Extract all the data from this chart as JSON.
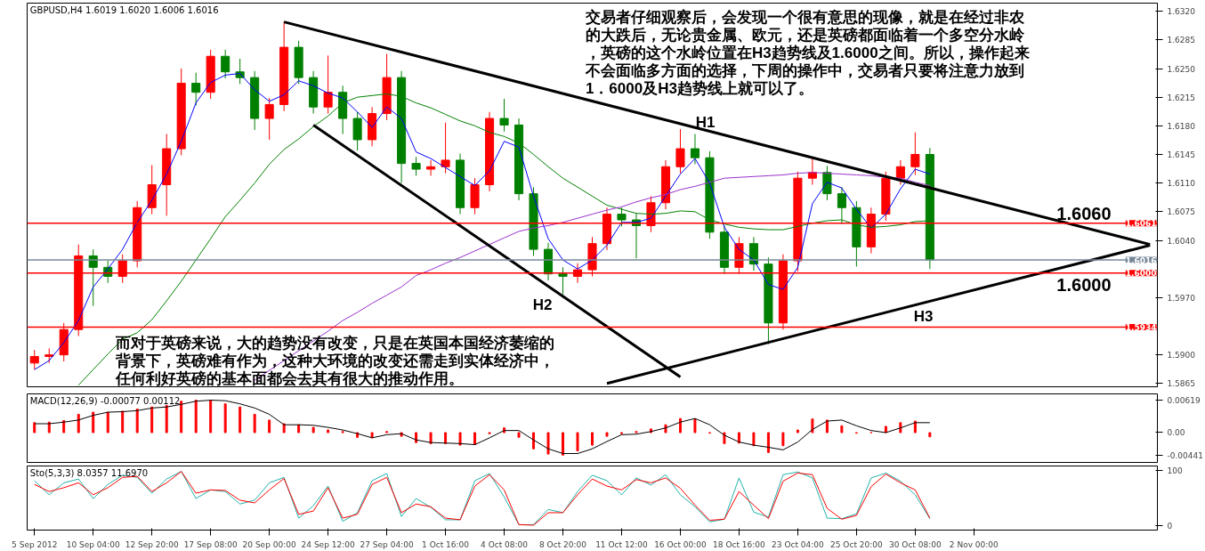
{
  "chart_data": [
    {
      "type": "candlestick",
      "title": "GBPUSD,H4  1.6019 1.6020 1.6006 1.6016",
      "categories": [
        null,
        null,
        null,
        null,
        null,
        null,
        null,
        null,
        null,
        null,
        null,
        null,
        null,
        null,
        null,
        null,
        null,
        null,
        null,
        null,
        null,
        null,
        null,
        null,
        null,
        null,
        null,
        null,
        null,
        null,
        null,
        null,
        null,
        null,
        null,
        null,
        null,
        null,
        null,
        null,
        null,
        null,
        null,
        null,
        null,
        null,
        null,
        null,
        null,
        null,
        null,
        null,
        null,
        null,
        null,
        null,
        null,
        null,
        null,
        null,
        null,
        null,
        null,
        null,
        null,
        null,
        null,
        null,
        null,
        null,
        null,
        null,
        null,
        null,
        null,
        null,
        null
      ],
      "ohlc": [
        [
          1.589,
          1.5906,
          1.5882,
          1.5898
        ],
        [
          1.5898,
          1.5908,
          1.589,
          1.59
        ],
        [
          1.59,
          1.5939,
          1.5892,
          1.5931
        ],
        [
          1.5931,
          1.6035,
          1.5923,
          1.6021
        ],
        [
          1.6021,
          1.6029,
          1.596,
          1.6007
        ],
        [
          1.6007,
          1.6015,
          1.5988,
          1.5996
        ],
        [
          1.5996,
          1.6023,
          1.5988,
          1.6015
        ],
        [
          1.6015,
          1.6088,
          1.6007,
          1.608
        ],
        [
          1.608,
          1.6132,
          1.6072,
          1.6108
        ],
        [
          1.6108,
          1.617,
          1.607,
          1.6152
        ],
        [
          1.6152,
          1.625,
          1.6144,
          1.6232
        ],
        [
          1.6232,
          1.6245,
          1.6205,
          1.6221
        ],
        [
          1.6221,
          1.6273,
          1.6213,
          1.6265
        ],
        [
          1.6265,
          1.6273,
          1.6238,
          1.6246
        ],
        [
          1.6246,
          1.6262,
          1.6231,
          1.6239
        ],
        [
          1.6239,
          1.6247,
          1.6175,
          1.6189
        ],
        [
          1.6189,
          1.6214,
          1.6163,
          1.6206
        ],
        [
          1.6206,
          1.6307,
          1.6198,
          1.6276
        ],
        [
          1.6276,
          1.6284,
          1.6231,
          1.6239
        ],
        [
          1.6239,
          1.6247,
          1.6195,
          1.6203
        ],
        [
          1.6203,
          1.6266,
          1.6195,
          1.6221
        ],
        [
          1.6221,
          1.6229,
          1.617,
          1.6189
        ],
        [
          1.6189,
          1.6197,
          1.615,
          1.6163
        ],
        [
          1.6163,
          1.6203,
          1.6155,
          1.6195
        ],
        [
          1.6195,
          1.6268,
          1.6187,
          1.6239
        ],
        [
          1.6239,
          1.6247,
          1.611,
          1.6134
        ],
        [
          1.6134,
          1.6142,
          1.6119,
          1.6127
        ],
        [
          1.6127,
          1.6138,
          1.6119,
          1.613
        ],
        [
          1.613,
          1.6184,
          1.6122,
          1.6138
        ],
        [
          1.6138,
          1.6146,
          1.6072,
          1.608
        ],
        [
          1.608,
          1.6116,
          1.6072,
          1.6108
        ],
        [
          1.6108,
          1.6197,
          1.61,
          1.6189
        ],
        [
          1.6189,
          1.6213,
          1.6173,
          1.6181
        ],
        [
          1.6181,
          1.6189,
          1.6089,
          1.6097
        ],
        [
          1.6097,
          1.6105,
          1.6021,
          1.6029
        ],
        [
          1.6029,
          1.6037,
          1.5991,
          1.5999
        ],
        [
          1.5999,
          1.6007,
          1.5974,
          1.5996
        ],
        [
          1.5996,
          1.6012,
          1.5988,
          1.6004
        ],
        [
          1.6004,
          1.6044,
          1.5996,
          1.6036
        ],
        [
          1.6036,
          1.608,
          1.6028,
          1.6072
        ],
        [
          1.6072,
          1.608,
          1.6057,
          1.6065
        ],
        [
          1.6065,
          1.6073,
          1.6018,
          1.6058
        ],
        [
          1.6058,
          1.6094,
          1.605,
          1.6086
        ],
        [
          1.6086,
          1.6138,
          1.6078,
          1.613
        ],
        [
          1.613,
          1.6176,
          1.6122,
          1.6152
        ],
        [
          1.6152,
          1.617,
          1.6133,
          1.6141
        ],
        [
          1.6141,
          1.6149,
          1.6042,
          1.605
        ],
        [
          1.605,
          1.6058,
          1.5999,
          1.6007
        ],
        [
          1.6007,
          1.6044,
          1.5999,
          1.6036
        ],
        [
          1.6036,
          1.6044,
          1.6003,
          1.6011
        ],
        [
          1.6011,
          1.6019,
          1.5913,
          1.5939
        ],
        [
          1.5939,
          1.6023,
          1.5931,
          1.6015
        ],
        [
          1.6015,
          1.6124,
          1.6002,
          1.6116
        ],
        [
          1.6116,
          1.614,
          1.6108,
          1.6123
        ],
        [
          1.6123,
          1.6131,
          1.6089,
          1.6097
        ],
        [
          1.6097,
          1.6105,
          1.606,
          1.608
        ],
        [
          1.608,
          1.6088,
          1.6008,
          1.6032
        ],
        [
          1.6032,
          1.608,
          1.6024,
          1.6072
        ],
        [
          1.6072,
          1.6124,
          1.6064,
          1.6116
        ],
        [
          1.6116,
          1.6138,
          1.6108,
          1.613
        ],
        [
          1.613,
          1.6172,
          1.612,
          1.6145
        ],
        [
          1.6145,
          1.6153,
          1.6005,
          1.6016
        ],
        null,
        null,
        null,
        null,
        null,
        null,
        null,
        null,
        null,
        null,
        null,
        null,
        null,
        null,
        null
      ],
      "colors": [
        "#ff0000",
        "#ff0000",
        "#ff0000",
        "#ff0000",
        "#008000",
        "#008000",
        "#ff0000",
        "#ff0000",
        "#ff0000",
        "#ff0000",
        "#ff0000",
        "#008000",
        "#ff0000",
        "#008000",
        "#008000",
        "#008000",
        "#ff0000",
        "#ff0000",
        "#008000",
        "#008000",
        "#ff0000",
        "#008000",
        "#008000",
        "#ff0000",
        "#ff0000",
        "#008000",
        "#008000",
        "#ff0000",
        "#ff0000",
        "#008000",
        "#ff0000",
        "#ff0000",
        "#008000",
        "#008000",
        "#008000",
        "#008000",
        "#008000",
        "#ff0000",
        "#ff0000",
        "#ff0000",
        "#008000",
        "#008000",
        "#ff0000",
        "#ff0000",
        "#ff0000",
        "#008000",
        "#008000",
        "#008000",
        "#ff0000",
        "#008000",
        "#008000",
        "#ff0000",
        "#ff0000",
        "#ff0000",
        "#008000",
        "#008000",
        "#008000",
        "#ff0000",
        "#ff0000",
        "#ff0000",
        "#ff0000",
        "#008000",
        null,
        null,
        null,
        null,
        null,
        null,
        null,
        null,
        null,
        null,
        null,
        null,
        null,
        null,
        null
      ],
      "series": [
        {
          "type": "line",
          "color": "#0000ff",
          "values": [
            1.5882,
            1.5893,
            1.5915,
            1.5942,
            1.5983,
            1.6005,
            1.6029,
            1.6062,
            1.6089,
            1.6121,
            1.6161,
            1.6208,
            1.6233,
            1.6242,
            1.6244,
            1.6224,
            1.621,
            1.6218,
            1.6235,
            1.6229,
            1.622,
            1.6214,
            1.6197,
            1.6178,
            1.6203,
            1.6189,
            1.6148,
            1.614,
            1.6129,
            1.6118,
            1.6107,
            1.6125,
            1.6161,
            1.6154,
            1.6094,
            1.6042,
            1.6016,
            1.6005,
            1.6016,
            1.6034,
            1.6062,
            1.6062,
            1.6067,
            1.6094,
            1.6121,
            1.614,
            1.611,
            1.6056,
            1.6029,
            1.6016,
            1.5986,
            1.598,
            1.6007,
            1.6085,
            1.6111,
            1.6104,
            1.6078,
            1.6055,
            1.6072,
            1.6103,
            1.6127,
            1.6121,
            null,
            null,
            null,
            null,
            null,
            null,
            null,
            null,
            null,
            null,
            null,
            null,
            null,
            null,
            null
          ]
        },
        {
          "type": "line",
          "color": "#008000",
          "values": [
            null,
            null,
            null,
            1.5863,
            1.5882,
            1.5901,
            1.5919,
            1.5927,
            1.5943,
            1.5966,
            1.599,
            1.6016,
            1.6042,
            1.6069,
            1.6089,
            1.611,
            1.6133,
            1.6151,
            1.6164,
            1.6179,
            1.6192,
            1.6208,
            1.6215,
            1.6217,
            1.6219,
            1.6216,
            1.6208,
            1.6202,
            1.6194,
            1.6186,
            1.618,
            1.6172,
            1.6167,
            1.6159,
            1.6145,
            1.613,
            1.6116,
            1.6105,
            1.6094,
            1.6083,
            1.6078,
            1.6073,
            1.6072,
            1.6073,
            1.6076,
            1.6075,
            1.6065,
            1.606,
            1.6056,
            1.6054,
            1.6053,
            1.6053,
            1.6057,
            1.6061,
            1.6064,
            1.6065,
            1.6059,
            1.6056,
            1.6057,
            1.6059,
            1.6063,
            1.6064,
            null,
            null,
            null,
            null,
            null,
            null,
            null,
            null,
            null,
            null,
            null,
            null,
            null,
            null,
            null
          ]
        },
        {
          "type": "line",
          "color": "#9932cc",
          "values": [
            null,
            null,
            null,
            null,
            null,
            null,
            null,
            null,
            null,
            null,
            null,
            null,
            null,
            null,
            null,
            1.5869,
            1.5881,
            1.5893,
            1.5905,
            1.5917,
            1.5929,
            1.5942,
            1.5952,
            1.5963,
            1.5973,
            1.5983,
            1.5997,
            1.6004,
            1.6012,
            1.6019,
            1.6027,
            1.6035,
            1.6043,
            1.6051,
            1.6055,
            1.6058,
            1.6062,
            1.6067,
            1.6072,
            1.6077,
            1.6081,
            1.6087,
            1.6092,
            1.6096,
            1.6102,
            1.6106,
            1.6111,
            1.6116,
            1.6117,
            1.6118,
            1.6119,
            1.612,
            1.6122,
            1.6123,
            1.6122,
            1.6121,
            1.612,
            1.6119,
            1.6117,
            1.6116,
            1.6111,
            1.6107,
            null,
            null,
            null,
            null,
            null,
            null,
            null,
            null,
            null,
            null,
            null,
            null,
            null,
            null,
            null
          ]
        },
        {
          "type": "line",
          "color": "#000000",
          "values": [
            null,
            null,
            null,
            null,
            null,
            null,
            null,
            null,
            null,
            null,
            null,
            null,
            null,
            null,
            null,
            null,
            null,
            1.6307,
            null,
            null,
            null,
            null,
            null,
            null,
            null,
            null,
            null,
            null,
            null,
            null,
            null,
            null,
            null,
            null,
            null,
            null,
            null,
            null,
            null,
            null,
            null,
            null,
            null,
            null,
            null,
            null,
            null,
            null,
            null,
            null,
            null,
            null,
            null,
            null,
            null,
            null,
            null,
            null,
            null,
            null,
            null,
            null,
            null,
            null,
            null,
            null,
            null,
            null,
            null,
            null,
            null,
            null,
            null,
            null,
            null,
            null,
            1.6035
          ]
        },
        {
          "type": "line",
          "color": "#000000",
          "values": [
            null,
            null,
            null,
            null,
            null,
            null,
            null,
            null,
            null,
            null,
            null,
            null,
            null,
            null,
            null,
            null,
            null,
            null,
            null,
            1.6181,
            null,
            null,
            null,
            null,
            null,
            null,
            null,
            null,
            null,
            null,
            null,
            null,
            null,
            null,
            null,
            null,
            null,
            null,
            null,
            null,
            null,
            null,
            null,
            null,
            1.5873,
            null,
            null,
            null,
            null,
            null,
            null,
            null,
            null,
            null,
            null,
            null,
            null,
            null,
            null,
            null,
            null,
            null,
            null,
            null,
            null,
            null,
            null,
            null,
            null,
            null,
            null,
            null,
            null,
            null,
            null,
            null,
            null
          ]
        },
        {
          "type": "line",
          "color": "#000000",
          "values": [
            null,
            null,
            null,
            null,
            null,
            null,
            null,
            null,
            null,
            null,
            null,
            null,
            null,
            null,
            null,
            null,
            null,
            null,
            null,
            null,
            null,
            null,
            null,
            null,
            null,
            null,
            null,
            null,
            null,
            null,
            null,
            null,
            null,
            null,
            null,
            null,
            null,
            null,
            null,
            1.5865,
            null,
            null,
            null,
            null,
            null,
            null,
            null,
            null,
            null,
            null,
            null,
            null,
            null,
            null,
            null,
            null,
            null,
            null,
            null,
            null,
            null,
            null,
            null,
            null,
            null,
            null,
            null,
            null,
            null,
            null,
            null,
            null,
            null,
            null,
            null,
            null,
            1.6034
          ]
        }
      ],
      "ylim": [
        1.5861,
        1.633
      ],
      "yticks": [
        {
          "value": 1.5865,
          "label": "1.5865"
        },
        {
          "value": 1.59,
          "label": "1.5900"
        },
        {
          "value": 1.597,
          "label": "1.5970"
        },
        {
          "value": 1.604,
          "label": "1.6040"
        },
        {
          "value": 1.6075,
          "label": "1.6075"
        },
        {
          "value": 1.611,
          "label": "1.6110"
        },
        {
          "value": 1.6145,
          "label": "1.6145"
        },
        {
          "value": 1.618,
          "label": "1.6180"
        },
        {
          "value": 1.6215,
          "label": "1.6215"
        },
        {
          "value": 1.625,
          "label": "1.6250"
        },
        {
          "value": 1.6285,
          "label": "1.6285"
        },
        {
          "value": 1.632,
          "label": "1.6320"
        }
      ],
      "ref_lines": [
        {
          "axis": "y",
          "value": 1.6061,
          "label": "1.6061",
          "color": "#ff0000"
        },
        {
          "axis": "y",
          "value": 1.6016,
          "label": "1.6016",
          "color": "#778899"
        },
        {
          "axis": "y",
          "value": 1.6,
          "label": "1.6000",
          "color": "#ff0000"
        },
        {
          "axis": "y",
          "value": 1.5934,
          "label": "1.5934",
          "color": "#ff0000"
        }
      ],
      "annotations": [
        "交易者仔细观察后，会发现一个很有意思的现像，就是在经过非农的大跌后，无论贵金属、欧元，还是英磅都面临着一个多空分水岭，英磅的这个水岭位置在H3趋势线及1.6000之间。所以，操作起来不会面临多方面的选择，下周的操作中，交易者只要将注意力放到1．6000及H3趋势线上就可以了。",
        "而对于英磅来说，大的趋势没有改变，只是在英国本国经济萎缩的背景下，英磅难有作为，这种大环境的改变还需走到实体经济中，任何利好英磅的基本面都会去其有很大的推动作用。",
        "H1",
        "H2",
        "H3",
        "1.6060",
        "1.6000"
      ],
      "grid": false,
      "tick_labels": "y"
    },
    {
      "type": "bar",
      "title": "MACD(12,26,9) -0.00077 0.00112",
      "categories": [
        null,
        null,
        null,
        null,
        null,
        null,
        null,
        null,
        null,
        null,
        null,
        null,
        null,
        null,
        null,
        null,
        null,
        null,
        null,
        null,
        null,
        null,
        null,
        null,
        null,
        null,
        null,
        null,
        null,
        null,
        null,
        null,
        null,
        null,
        null,
        null,
        null,
        null,
        null,
        null,
        null,
        null,
        null,
        null,
        null,
        null,
        null,
        null,
        null,
        null,
        null,
        null,
        null,
        null,
        null,
        null,
        null,
        null,
        null,
        null,
        null,
        null,
        null,
        null,
        null,
        null,
        null,
        null,
        null,
        null,
        null,
        null,
        null,
        null,
        null,
        null,
        null
      ],
      "series": [
        {
          "type": "bar",
          "color": "#ff0000",
          "values": [
            0.0019,
            0.002,
            0.0023,
            0.0035,
            0.0039,
            0.0039,
            0.0041,
            0.0045,
            0.0049,
            0.0052,
            0.006,
            0.0062,
            0.0062,
            0.0055,
            0.0049,
            0.0035,
            0.0024,
            0.0017,
            0.0015,
            0.001,
            0.0005,
            0.0002,
            -0.0009,
            -0.001,
            0.0002,
            -0.0007,
            -0.0019,
            -0.0021,
            -0.0021,
            -0.0024,
            -0.0023,
            -0.0002,
            0.0009,
            -0.0009,
            -0.0031,
            -0.0041,
            -0.0043,
            -0.0035,
            -0.0024,
            -0.0007,
            -0.0002,
            0.0002,
            0.0007,
            0.0015,
            0.0027,
            0.0026,
            -0.0001,
            -0.0021,
            -0.002,
            -0.0025,
            -0.0038,
            -0.0025,
            0.0005,
            0.0026,
            0.0024,
            0.0013,
            -0.0001,
            0.0,
            0.0012,
            0.0019,
            0.0022,
            -0.0008,
            null,
            null,
            null,
            null,
            null,
            null,
            null,
            null,
            null,
            null,
            null,
            null,
            null,
            null,
            null
          ]
        },
        {
          "type": "line",
          "color": "#000000",
          "values": [
            0.0017,
            0.0017,
            0.002,
            0.0024,
            0.0033,
            0.0039,
            0.004,
            0.0042,
            0.0047,
            0.0049,
            0.0054,
            0.006,
            0.0062,
            0.0061,
            0.0055,
            0.0047,
            0.0035,
            0.0015,
            0.0015,
            0.0014,
            0.001,
            0.0005,
            -0.0002,
            -0.001,
            -0.0004,
            -0.0002,
            -0.0014,
            -0.0019,
            -0.002,
            -0.0021,
            -0.0023,
            -0.001,
            0.0004,
            0.0004,
            -0.0014,
            -0.0031,
            -0.004,
            -0.004,
            -0.0031,
            -0.0017,
            -0.0004,
            -0.0003,
            0.0002,
            0.0009,
            0.002,
            0.0027,
            0.0015,
            -0.0005,
            -0.0018,
            -0.0024,
            -0.0028,
            -0.0033,
            -0.0018,
            0.0006,
            0.0022,
            0.0024,
            0.0013,
            0.0004,
            0.0,
            0.0009,
            0.0019,
            0.0019,
            null,
            null,
            null,
            null,
            null,
            null,
            null,
            null,
            null,
            null,
            null,
            null,
            null,
            null,
            null
          ]
        }
      ],
      "ylim": [
        -0.0057,
        0.0074
      ],
      "yticks": [
        {
          "value": -0.00441,
          "label": "-0.00441"
        },
        {
          "value": 0,
          "label": "0.00"
        },
        {
          "value": 0.00619,
          "label": "0.00619"
        }
      ],
      "grid": false,
      "tick_labels": "y"
    },
    {
      "type": "line",
      "title": "Sto(5,3,3) 8.0357 11.6970",
      "categories": [
        "5 Sep 2012",
        null,
        null,
        null,
        "10 Sep 04:00",
        null,
        null,
        null,
        "12 Sep 20:00",
        null,
        null,
        null,
        "17 Sep 08:00",
        null,
        null,
        null,
        "20 Sep 00:00",
        null,
        null,
        null,
        "24 Sep 12:00",
        null,
        null,
        null,
        "27 Sep 04:00",
        null,
        null,
        null,
        "1 Oct 16:00",
        null,
        null,
        null,
        "4 Oct 08:00",
        null,
        null,
        null,
        "8 Oct 20:00",
        null,
        null,
        null,
        "11 Oct 12:00",
        null,
        null,
        null,
        "16 Oct 00:00",
        null,
        null,
        null,
        "18 Oct 16:00",
        null,
        null,
        null,
        "23 Oct 04:00",
        null,
        null,
        null,
        "25 Oct 20:00",
        null,
        null,
        null,
        "30 Oct 08:00",
        null,
        null,
        null,
        "2 Nov 00:00",
        null,
        null,
        null,
        null,
        null,
        null,
        null,
        null,
        null,
        null,
        null,
        null
      ],
      "series": [
        {
          "type": "line",
          "color": "#20b2aa",
          "values": [
            82,
            56,
            78,
            85,
            49,
            75,
            92,
            88,
            59,
            85,
            99,
            49,
            65,
            62,
            39,
            46,
            78,
            88,
            13,
            36,
            72,
            7,
            23,
            82,
            95,
            16,
            49,
            33,
            10,
            10,
            82,
            95,
            52,
            1,
            1,
            29,
            23,
            62,
            92,
            82,
            56,
            87,
            74,
            93,
            56,
            34,
            6,
            11,
            87,
            24,
            15,
            93,
            98,
            87,
            13,
            12,
            21,
            87,
            96,
            81,
            56,
            12,
            null,
            null,
            null,
            null,
            null,
            null,
            null,
            null,
            null,
            null,
            null,
            null,
            null,
            null,
            null
          ]
        },
        {
          "type": "line",
          "color": "#ff0000",
          "values": [
            75,
            62,
            69,
            78,
            56,
            69,
            88,
            90,
            62,
            78,
            99,
            59,
            65,
            64,
            46,
            41,
            65,
            86,
            20,
            26,
            69,
            13,
            20,
            75,
            88,
            23,
            39,
            34,
            13,
            10,
            72,
            93,
            65,
            1,
            0,
            23,
            23,
            56,
            85,
            72,
            65,
            84,
            78,
            87,
            68,
            37,
            9,
            11,
            62,
            37,
            12,
            81,
            96,
            93,
            31,
            11,
            18,
            71,
            94,
            78,
            65,
            13,
            null,
            null,
            null,
            null,
            null,
            null,
            null,
            null,
            null,
            null,
            null,
            null,
            null,
            null,
            null
          ]
        }
      ],
      "ylim": [
        -9,
        109
      ],
      "yticks": [
        0,
        100
      ],
      "grid": false
    }
  ]
}
